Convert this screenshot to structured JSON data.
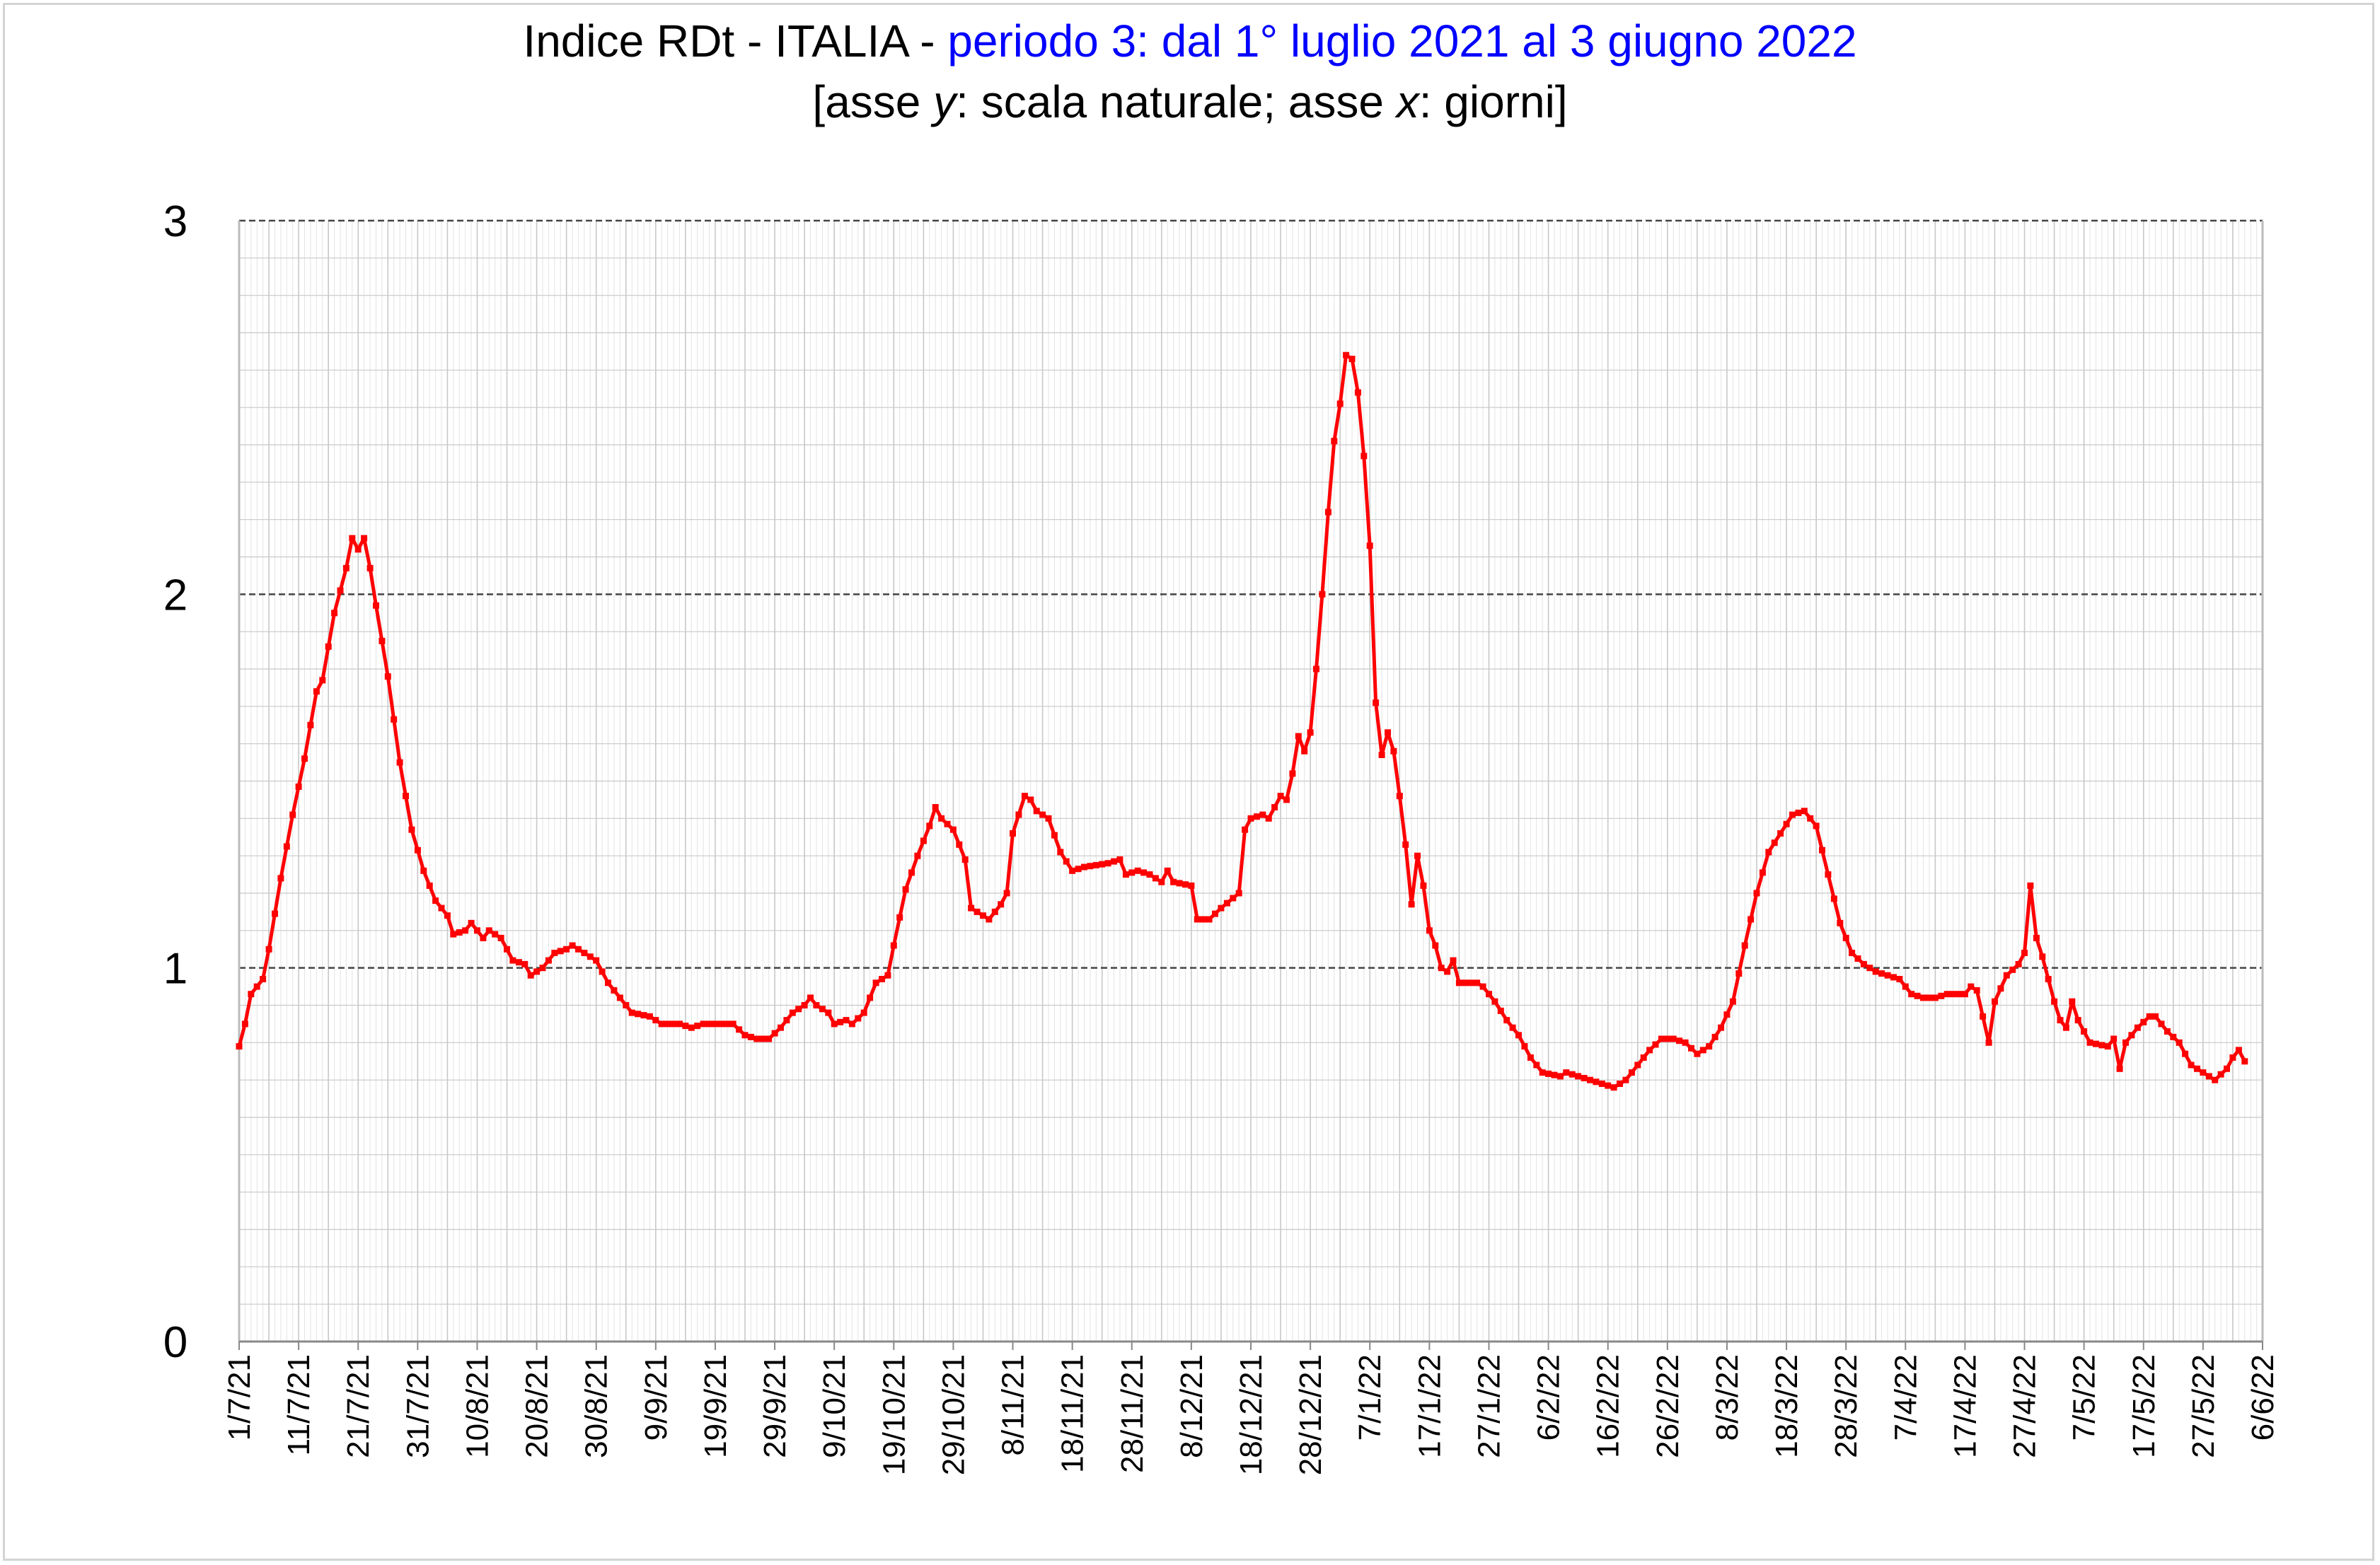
{
  "title": {
    "prefix": "Indice RDt - ITALIA - ",
    "period": "periodo 3: dal 1° luglio 2021 al 3 giugno 2022",
    "sub_open": "[asse ",
    "sub_y": "y",
    "sub_mid": ": scala naturale; asse ",
    "sub_x": "x",
    "sub_close": ": giorni]"
  },
  "colors": {
    "series": "#ff0000",
    "title_accent": "#0000ff",
    "major_grid": "#444444",
    "minor_grid": "#e3e3e3",
    "week_grid": "#c8c8c8"
  },
  "chart_data": {
    "type": "line",
    "title": "Indice RDt - ITALIA - periodo 3: dal 1° luglio 2021 al 3 giugno 2022",
    "subtitle": "[asse y: scala naturale; asse x: giorni]",
    "xlabel": "",
    "ylabel": "",
    "ylim": [
      0,
      3
    ],
    "y_ticks": [
      "0",
      "1",
      "2",
      "3"
    ],
    "x_range": [
      "2021-07-01",
      "2022-06-06"
    ],
    "x_tick_labels": [
      "1/7/21",
      "11/7/21",
      "21/7/21",
      "31/7/21",
      "10/8/21",
      "20/8/21",
      "30/8/21",
      "9/9/21",
      "19/9/21",
      "29/9/21",
      "9/10/21",
      "19/10/21",
      "29/10/21",
      "8/11/21",
      "18/11/21",
      "28/11/21",
      "8/12/21",
      "18/12/21",
      "28/12/21",
      "7/1/22",
      "17/1/22",
      "27/1/22",
      "6/2/22",
      "16/2/22",
      "26/2/22",
      "8/3/22",
      "18/3/22",
      "28/3/22",
      "7/4/22",
      "17/4/22",
      "27/4/22",
      "7/5/22",
      "17/5/22",
      "27/5/22",
      "6/6/22"
    ],
    "grid": "major dashed at 1, 2, 3; minor grid every 0.1 and daily",
    "series": [
      {
        "x_start": "2021-07-01",
        "x_end": "2022-06-03",
        "anchors": [
          [
            "2021-07-01",
            0.79
          ],
          [
            "2021-07-02",
            0.85
          ],
          [
            "2021-07-03",
            0.93
          ],
          [
            "2021-07-05",
            0.97
          ],
          [
            "2021-07-06",
            1.05
          ],
          [
            "2021-07-08",
            1.24
          ],
          [
            "2021-07-10",
            1.41
          ],
          [
            "2021-07-12",
            1.56
          ],
          [
            "2021-07-14",
            1.74
          ],
          [
            "2021-07-15",
            1.77
          ],
          [
            "2021-07-17",
            1.95
          ],
          [
            "2021-07-19",
            2.07
          ],
          [
            "2021-07-20",
            2.15
          ],
          [
            "2021-07-21",
            2.12
          ],
          [
            "2021-07-22",
            2.15
          ],
          [
            "2021-07-23",
            2.07
          ],
          [
            "2021-07-24",
            1.97
          ],
          [
            "2021-07-26",
            1.78
          ],
          [
            "2021-07-28",
            1.55
          ],
          [
            "2021-07-30",
            1.37
          ],
          [
            "2021-08-01",
            1.26
          ],
          [
            "2021-08-03",
            1.18
          ],
          [
            "2021-08-05",
            1.14
          ],
          [
            "2021-08-06",
            1.09
          ],
          [
            "2021-08-08",
            1.1
          ],
          [
            "2021-08-09",
            1.12
          ],
          [
            "2021-08-11",
            1.08
          ],
          [
            "2021-08-12",
            1.1
          ],
          [
            "2021-08-14",
            1.08
          ],
          [
            "2021-08-16",
            1.02
          ],
          [
            "2021-08-18",
            1.01
          ],
          [
            "2021-08-19",
            0.98
          ],
          [
            "2021-08-21",
            1.0
          ],
          [
            "2021-08-23",
            1.04
          ],
          [
            "2021-08-25",
            1.05
          ],
          [
            "2021-08-26",
            1.06
          ],
          [
            "2021-08-28",
            1.04
          ],
          [
            "2021-08-30",
            1.02
          ],
          [
            "2021-09-01",
            0.96
          ],
          [
            "2021-09-03",
            0.92
          ],
          [
            "2021-09-05",
            0.88
          ],
          [
            "2021-09-08",
            0.87
          ],
          [
            "2021-09-10",
            0.85
          ],
          [
            "2021-09-13",
            0.85
          ],
          [
            "2021-09-15",
            0.84
          ],
          [
            "2021-09-17",
            0.85
          ],
          [
            "2021-09-22",
            0.85
          ],
          [
            "2021-09-24",
            0.82
          ],
          [
            "2021-09-26",
            0.81
          ],
          [
            "2021-09-28",
            0.81
          ],
          [
            "2021-09-30",
            0.84
          ],
          [
            "2021-10-02",
            0.88
          ],
          [
            "2021-10-04",
            0.9
          ],
          [
            "2021-10-05",
            0.92
          ],
          [
            "2021-10-06",
            0.9
          ],
          [
            "2021-10-08",
            0.88
          ],
          [
            "2021-10-09",
            0.85
          ],
          [
            "2021-10-11",
            0.86
          ],
          [
            "2021-10-12",
            0.85
          ],
          [
            "2021-10-14",
            0.88
          ],
          [
            "2021-10-16",
            0.96
          ],
          [
            "2021-10-18",
            0.98
          ],
          [
            "2021-10-19",
            1.06
          ],
          [
            "2021-10-21",
            1.21
          ],
          [
            "2021-10-23",
            1.3
          ],
          [
            "2021-10-25",
            1.38
          ],
          [
            "2021-10-26",
            1.43
          ],
          [
            "2021-10-27",
            1.4
          ],
          [
            "2021-10-29",
            1.37
          ],
          [
            "2021-10-31",
            1.29
          ],
          [
            "2021-11-01",
            1.16
          ],
          [
            "2021-11-03",
            1.14
          ],
          [
            "2021-11-04",
            1.13
          ],
          [
            "2021-11-06",
            1.17
          ],
          [
            "2021-11-07",
            1.2
          ],
          [
            "2021-11-08",
            1.36
          ],
          [
            "2021-11-10",
            1.46
          ],
          [
            "2021-11-11",
            1.45
          ],
          [
            "2021-11-12",
            1.42
          ],
          [
            "2021-11-14",
            1.4
          ],
          [
            "2021-11-16",
            1.31
          ],
          [
            "2021-11-18",
            1.26
          ],
          [
            "2021-11-20",
            1.27
          ],
          [
            "2021-11-24",
            1.28
          ],
          [
            "2021-11-26",
            1.29
          ],
          [
            "2021-11-27",
            1.25
          ],
          [
            "2021-11-29",
            1.26
          ],
          [
            "2021-12-01",
            1.25
          ],
          [
            "2021-12-03",
            1.23
          ],
          [
            "2021-12-04",
            1.26
          ],
          [
            "2021-12-05",
            1.23
          ],
          [
            "2021-12-08",
            1.22
          ],
          [
            "2021-12-09",
            1.13
          ],
          [
            "2021-12-11",
            1.13
          ],
          [
            "2021-12-13",
            1.16
          ],
          [
            "2021-12-16",
            1.2
          ],
          [
            "2021-12-17",
            1.37
          ],
          [
            "2021-12-18",
            1.4
          ],
          [
            "2021-12-20",
            1.41
          ],
          [
            "2021-12-21",
            1.4
          ],
          [
            "2021-12-23",
            1.46
          ],
          [
            "2021-12-24",
            1.45
          ],
          [
            "2021-12-25",
            1.52
          ],
          [
            "2021-12-26",
            1.62
          ],
          [
            "2021-12-27",
            1.58
          ],
          [
            "2021-12-28",
            1.63
          ],
          [
            "2021-12-29",
            1.8
          ],
          [
            "2021-12-30",
            2.0
          ],
          [
            "2021-12-31",
            2.22
          ],
          [
            "2022-01-01",
            2.41
          ],
          [
            "2022-01-02",
            2.51
          ],
          [
            "2022-01-03",
            2.64
          ],
          [
            "2022-01-04",
            2.63
          ],
          [
            "2022-01-05",
            2.54
          ],
          [
            "2022-01-06",
            2.37
          ],
          [
            "2022-01-07",
            2.13
          ],
          [
            "2022-01-08",
            1.71
          ],
          [
            "2022-01-09",
            1.57
          ],
          [
            "2022-01-10",
            1.63
          ],
          [
            "2022-01-11",
            1.58
          ],
          [
            "2022-01-12",
            1.46
          ],
          [
            "2022-01-13",
            1.33
          ],
          [
            "2022-01-14",
            1.17
          ],
          [
            "2022-01-15",
            1.3
          ],
          [
            "2022-01-16",
            1.22
          ],
          [
            "2022-01-17",
            1.1
          ],
          [
            "2022-01-18",
            1.06
          ],
          [
            "2022-01-19",
            1.0
          ],
          [
            "2022-01-20",
            0.99
          ],
          [
            "2022-01-21",
            1.02
          ],
          [
            "2022-01-22",
            0.96
          ],
          [
            "2022-01-25",
            0.96
          ],
          [
            "2022-01-26",
            0.95
          ],
          [
            "2022-01-28",
            0.91
          ],
          [
            "2022-01-30",
            0.86
          ],
          [
            "2022-02-01",
            0.82
          ],
          [
            "2022-02-03",
            0.76
          ],
          [
            "2022-02-05",
            0.72
          ],
          [
            "2022-02-08",
            0.71
          ],
          [
            "2022-02-09",
            0.72
          ],
          [
            "2022-02-11",
            0.71
          ],
          [
            "2022-02-13",
            0.7
          ],
          [
            "2022-02-15",
            0.69
          ],
          [
            "2022-02-17",
            0.68
          ],
          [
            "2022-02-19",
            0.7
          ],
          [
            "2022-02-21",
            0.74
          ],
          [
            "2022-02-23",
            0.78
          ],
          [
            "2022-02-25",
            0.81
          ],
          [
            "2022-02-27",
            0.81
          ],
          [
            "2022-03-01",
            0.8
          ],
          [
            "2022-03-03",
            0.77
          ],
          [
            "2022-03-05",
            0.79
          ],
          [
            "2022-03-07",
            0.84
          ],
          [
            "2022-03-09",
            0.91
          ],
          [
            "2022-03-11",
            1.06
          ],
          [
            "2022-03-13",
            1.2
          ],
          [
            "2022-03-15",
            1.31
          ],
          [
            "2022-03-17",
            1.36
          ],
          [
            "2022-03-19",
            1.41
          ],
          [
            "2022-03-21",
            1.42
          ],
          [
            "2022-03-23",
            1.38
          ],
          [
            "2022-03-25",
            1.25
          ],
          [
            "2022-03-27",
            1.12
          ],
          [
            "2022-03-29",
            1.04
          ],
          [
            "2022-03-31",
            1.01
          ],
          [
            "2022-04-02",
            0.99
          ],
          [
            "2022-04-04",
            0.98
          ],
          [
            "2022-04-06",
            0.97
          ],
          [
            "2022-04-08",
            0.93
          ],
          [
            "2022-04-10",
            0.92
          ],
          [
            "2022-04-12",
            0.92
          ],
          [
            "2022-04-14",
            0.93
          ],
          [
            "2022-04-17",
            0.93
          ],
          [
            "2022-04-18",
            0.95
          ],
          [
            "2022-04-19",
            0.94
          ],
          [
            "2022-04-21",
            0.8
          ],
          [
            "2022-04-22",
            0.91
          ],
          [
            "2022-04-24",
            0.98
          ],
          [
            "2022-04-26",
            1.01
          ],
          [
            "2022-04-27",
            1.04
          ],
          [
            "2022-04-28",
            1.22
          ],
          [
            "2022-04-29",
            1.08
          ],
          [
            "2022-04-30",
            1.03
          ],
          [
            "2022-05-02",
            0.91
          ],
          [
            "2022-05-03",
            0.86
          ],
          [
            "2022-05-04",
            0.84
          ],
          [
            "2022-05-05",
            0.91
          ],
          [
            "2022-05-06",
            0.86
          ],
          [
            "2022-05-07",
            0.83
          ],
          [
            "2022-05-08",
            0.8
          ],
          [
            "2022-05-11",
            0.79
          ],
          [
            "2022-05-12",
            0.81
          ],
          [
            "2022-05-13",
            0.73
          ],
          [
            "2022-05-14",
            0.8
          ],
          [
            "2022-05-16",
            0.84
          ],
          [
            "2022-05-18",
            0.87
          ],
          [
            "2022-05-19",
            0.87
          ],
          [
            "2022-05-21",
            0.83
          ],
          [
            "2022-05-23",
            0.8
          ],
          [
            "2022-05-25",
            0.74
          ],
          [
            "2022-05-27",
            0.72
          ],
          [
            "2022-05-29",
            0.7
          ],
          [
            "2022-05-31",
            0.73
          ],
          [
            "2022-06-01",
            0.76
          ],
          [
            "2022-06-02",
            0.78
          ],
          [
            "2022-06-03",
            0.75
          ]
        ]
      }
    ]
  }
}
